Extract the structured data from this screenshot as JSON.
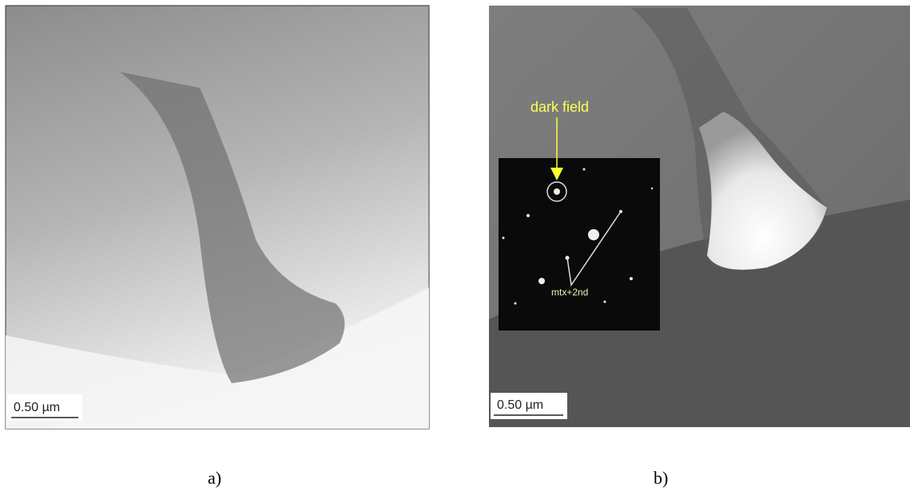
{
  "panels": [
    {
      "label": "a)",
      "scale_bar": "0.50 µm"
    },
    {
      "label": "b)",
      "scale_bar": "0.50 µm",
      "annotation": "dark field",
      "inset_label": "mtx+2nd"
    }
  ]
}
